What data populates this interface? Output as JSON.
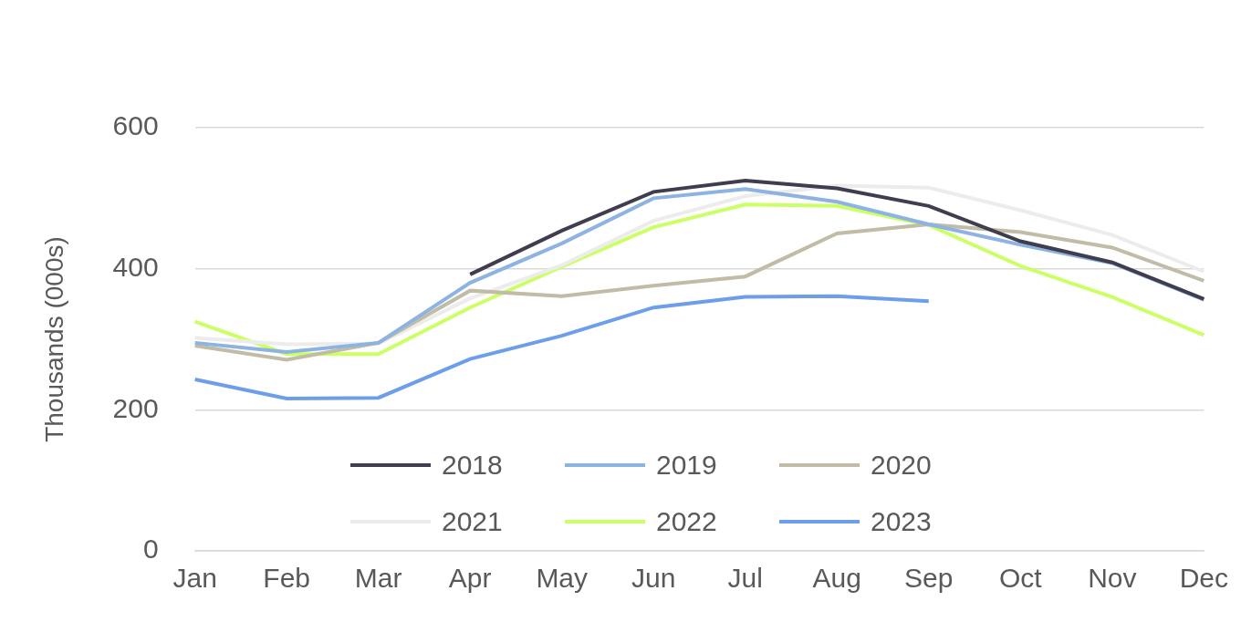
{
  "chart_data": {
    "type": "line",
    "y_label": "Thousands (000s)",
    "categories": [
      "Jan",
      "Feb",
      "Mar",
      "Apr",
      "May",
      "Jun",
      "Jul",
      "Aug",
      "Sep",
      "Oct",
      "Nov",
      "Dec"
    ],
    "series": [
      {
        "name": "2018",
        "color": "#3f3d4e",
        "values": [
          null,
          null,
          null,
          392,
          454,
          509,
          525,
          514,
          489,
          439,
          409,
          357
        ]
      },
      {
        "name": "2019",
        "color": "#8db3e2",
        "values": [
          295,
          282,
          295,
          380,
          436,
          500,
          513,
          495,
          463,
          434,
          408,
          356
        ]
      },
      {
        "name": "2020",
        "color": "#c0bca6",
        "values": [
          291,
          271,
          295,
          369,
          361,
          376,
          389,
          450,
          463,
          452,
          430,
          383
        ]
      },
      {
        "name": "2021",
        "color": "#ececec",
        "values": [
          302,
          293,
          294,
          358,
          405,
          468,
          503,
          518,
          515,
          483,
          448,
          396
        ]
      },
      {
        "name": "2022",
        "color": "#ccff66",
        "values": [
          325,
          279,
          279,
          345,
          403,
          459,
          491,
          489,
          462,
          404,
          360,
          306
        ]
      },
      {
        "name": "2023",
        "color": "#6d9eeb",
        "values": [
          243,
          216,
          217,
          272,
          305,
          345,
          360,
          361,
          354,
          null,
          null,
          null
        ]
      }
    ],
    "ylim": [
      0,
      600
    ],
    "yticks": [
      0,
      200,
      400,
      600
    ],
    "grid": true,
    "legend": "lower center"
  }
}
